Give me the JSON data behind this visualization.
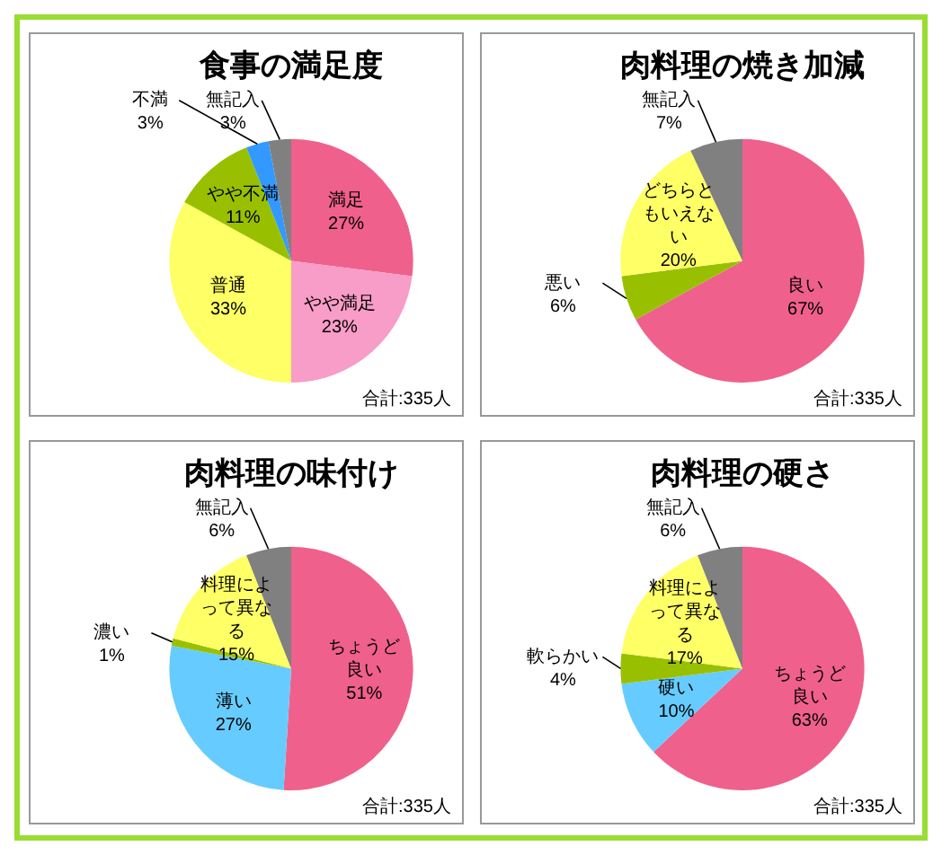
{
  "chart_data": [
    {
      "type": "pie",
      "title": "食事の満足度",
      "categories": [
        "満足",
        "やや満足",
        "普通",
        "やや不満",
        "不満",
        "無記入"
      ],
      "values": [
        27,
        23,
        33,
        11,
        3,
        3
      ],
      "colors": [
        "#f0608c",
        "#f89cc8",
        "#ffff66",
        "#99c000",
        "#3399ff",
        "#808080"
      ],
      "value_labels": [
        "27%",
        "23%",
        "33%",
        "11%",
        "3%",
        "3%"
      ],
      "annotations": [
        "合計:335人"
      ]
    },
    {
      "type": "pie",
      "title": "肉料理の焼き加減",
      "categories": [
        "良い",
        "悪い",
        "どちらともいえない",
        "無記入"
      ],
      "values": [
        67,
        6,
        20,
        7
      ],
      "colors": [
        "#f0608c",
        "#99c000",
        "#ffff66",
        "#808080"
      ],
      "value_labels": [
        "67%",
        "6%",
        "20%",
        "7%"
      ],
      "annotations": [
        "合計:335人"
      ]
    },
    {
      "type": "pie",
      "title": "肉料理の味付け",
      "categories": [
        "ちょうど良い",
        "薄い",
        "濃い",
        "料理によって異なる",
        "無記入"
      ],
      "values": [
        51,
        27,
        1,
        15,
        6
      ],
      "colors": [
        "#f0608c",
        "#66ccff",
        "#99c000",
        "#ffff66",
        "#808080"
      ],
      "value_labels": [
        "51%",
        "27%",
        "1%",
        "15%",
        "6%"
      ],
      "annotations": [
        "合計:335人"
      ]
    },
    {
      "type": "pie",
      "title": "肉料理の硬さ",
      "categories": [
        "ちょうど良い",
        "硬い",
        "軟らかい",
        "料理によって異なる",
        "無記入"
      ],
      "values": [
        63,
        10,
        4,
        17,
        6
      ],
      "colors": [
        "#f0608c",
        "#66ccff",
        "#99c000",
        "#ffff66",
        "#808080"
      ],
      "value_labels": [
        "63%",
        "10%",
        "4%",
        "17%",
        "6%"
      ],
      "annotations": [
        "合計:335人"
      ]
    }
  ]
}
